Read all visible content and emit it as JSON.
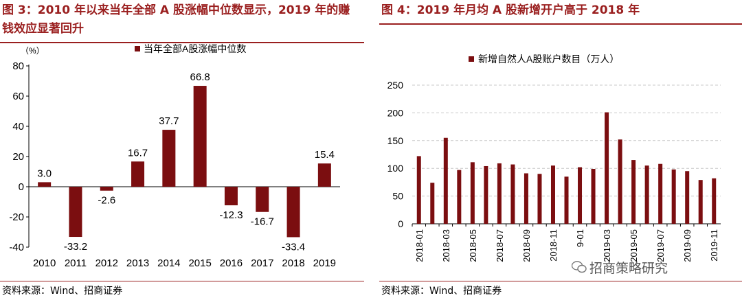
{
  "left": {
    "title": "图 3：2010 年以来当年全部 A 股涨幅中位数显示，2019 年的赚钱效应显著回升",
    "source": "资料来源：Wind、招商证券"
  },
  "right": {
    "title": "图 4：2019 年月均 A 股新增开户高于 2018 年",
    "source": "资料来源：Wind、招商证券"
  },
  "watermark": "招商策略研究",
  "colors": {
    "bar": "#7b0e10",
    "title": "#9a1f1f",
    "grid": "#c8c8c8"
  },
  "chart_data": [
    {
      "type": "bar",
      "unit_label": "（%）",
      "legend": "当年全部A股涨幅中位数",
      "legend_position": "top-center",
      "categories": [
        "2010",
        "2011",
        "2012",
        "2013",
        "2014",
        "2015",
        "2016",
        "2017",
        "2018",
        "2019"
      ],
      "values": [
        3.0,
        -33.2,
        -2.6,
        16.7,
        37.7,
        66.8,
        -12.3,
        -16.7,
        -33.4,
        15.4
      ],
      "data_labels": [
        "3.0",
        "-33.2",
        "-2.6",
        "16.7",
        "37.7",
        "66.8",
        "-12.3",
        "-16.7",
        "-33.4",
        "15.4"
      ],
      "ylim": [
        -40,
        80
      ],
      "yticks": [
        -40,
        -20,
        0,
        20,
        40,
        60,
        80
      ],
      "grid": false
    },
    {
      "type": "bar",
      "legend": "新增自然人A股账户数目（万人）",
      "legend_position": "top-center",
      "categories": [
        "2018-01",
        "2018-02",
        "2018-03",
        "2018-04",
        "2018-05",
        "2018-06",
        "2018-07",
        "2018-08",
        "2018-09",
        "2018-10",
        "2018-11",
        "2018-12",
        "2019-01",
        "2019-02",
        "2019-03",
        "2019-04",
        "2019-05",
        "2019-06",
        "2019-07",
        "2019-08",
        "2019-09",
        "2019-10",
        "2019-11"
      ],
      "tick_labels": [
        "2018-01",
        "",
        "2018-03",
        "",
        "2018-05",
        "",
        "2018-07",
        "",
        "2018-09",
        "",
        "2018-11",
        "",
        "9-01",
        "",
        "2019-03",
        "",
        "2019-05",
        "",
        "2019-07",
        "",
        "2019-09",
        "",
        "2019-11"
      ],
      "values": [
        122,
        74,
        155,
        97,
        111,
        104,
        109,
        107,
        91,
        90,
        105,
        85,
        102,
        99,
        201,
        152,
        115,
        105,
        108,
        98,
        95,
        79,
        82
      ],
      "ylim": [
        0,
        250
      ],
      "yticks": [
        0,
        50,
        100,
        150,
        200,
        250
      ],
      "grid": true
    }
  ]
}
